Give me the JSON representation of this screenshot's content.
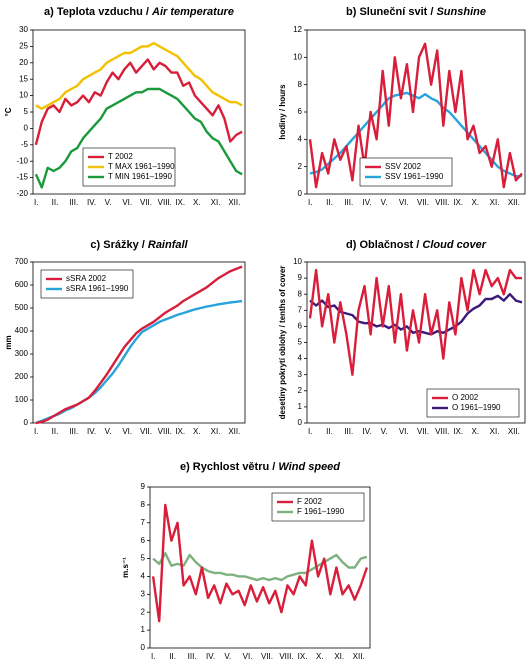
{
  "chart_data": [
    {
      "type": "line",
      "title": "a) Teplota vzduchu /",
      "title_en": "Air temperature",
      "ylabel": "°C",
      "legend": "lower-center",
      "categories": [
        "I.",
        null,
        null,
        "II.",
        null,
        null,
        "III.",
        null,
        null,
        "IV.",
        null,
        null,
        "V.",
        null,
        null,
        "VI.",
        null,
        null,
        "VII.",
        null,
        null,
        "VIII.",
        null,
        null,
        "IX.",
        null,
        null,
        "X.",
        null,
        null,
        "XI.",
        null,
        null,
        "XII.",
        null,
        null
      ],
      "ylim": [
        -20,
        30
      ],
      "yticks": [
        -20,
        -15,
        -10,
        -5,
        0,
        5,
        10,
        15,
        20,
        25,
        30
      ],
      "series": [
        {
          "name": "T 2002",
          "color": "#d81e3a",
          "values": [
            -5,
            2,
            6,
            7,
            5,
            9,
            7,
            8,
            10,
            8,
            11,
            10,
            14,
            17,
            15,
            18,
            20,
            17,
            19,
            21,
            18,
            20,
            19,
            17,
            17,
            13,
            14,
            10,
            8,
            6,
            4,
            7,
            3,
            -4,
            -2,
            -1
          ]
        },
        {
          "name": "T MAX 1961–1990",
          "color": "#f2c200",
          "values": [
            7,
            6,
            7,
            8,
            9,
            11,
            12,
            13,
            15,
            16,
            17,
            18,
            20,
            21,
            22,
            23,
            23,
            24,
            25,
            25,
            26,
            25,
            24,
            23,
            22,
            20,
            18,
            16,
            15,
            13,
            11,
            10,
            9,
            8,
            8,
            7
          ]
        },
        {
          "name": "T MIN 1961–1990",
          "color": "#1a9a3c",
          "values": [
            -14,
            -18,
            -12,
            -13,
            -12,
            -10,
            -7,
            -6,
            -3,
            -1,
            1,
            3,
            6,
            7,
            8,
            9,
            10,
            11,
            11,
            12,
            12,
            12,
            11,
            10,
            9,
            7,
            5,
            3,
            2,
            -1,
            -3,
            -4,
            -7,
            -10,
            -13,
            -14
          ]
        }
      ]
    },
    {
      "type": "line",
      "title": "b) Sluneční svit /",
      "title_en": "Sunshine",
      "ylabel": "hodiny / hours",
      "legend": "lower-center",
      "categories": [
        "I.",
        null,
        null,
        "II.",
        null,
        null,
        "III.",
        null,
        null,
        "IV.",
        null,
        null,
        "V.",
        null,
        null,
        "VI.",
        null,
        null,
        "VII.",
        null,
        null,
        "VIII.",
        null,
        null,
        "IX.",
        null,
        null,
        "X.",
        null,
        null,
        "XI.",
        null,
        null,
        "XII.",
        null,
        null
      ],
      "ylim": [
        0,
        12
      ],
      "yticks": [
        0,
        2,
        4,
        6,
        8,
        10,
        12
      ],
      "series": [
        {
          "name": "SSV 2002",
          "color": "#d81e3a",
          "values": [
            4,
            0.5,
            3,
            1.5,
            4,
            2.5,
            3.5,
            1,
            5,
            2,
            6,
            4,
            9,
            5,
            10,
            7,
            9.5,
            6,
            10,
            11,
            8,
            10.5,
            5,
            9,
            6,
            9,
            4,
            5,
            3,
            3.5,
            2,
            4,
            0.5,
            3,
            1,
            1.5
          ]
        },
        {
          "name": "SSV 1961–1990",
          "color": "#29a3dc",
          "values": [
            1.5,
            1.6,
            1.8,
            2.2,
            2.6,
            3,
            3.5,
            4,
            4.5,
            5,
            5.5,
            6,
            6.5,
            7,
            7.2,
            7.3,
            7.4,
            7.2,
            7,
            7.3,
            7,
            6.8,
            6.3,
            6,
            5.5,
            5,
            4.5,
            4,
            3.5,
            3,
            2.5,
            2,
            1.7,
            1.5,
            1.3,
            1.3
          ]
        }
      ]
    },
    {
      "type": "line",
      "title": "c) Srážky /",
      "title_en": "Rainfall",
      "ylabel": "mm",
      "legend": "upper-left",
      "categories": [
        "I.",
        null,
        null,
        "II.",
        null,
        null,
        "III.",
        null,
        null,
        "IV.",
        null,
        null,
        "V.",
        null,
        null,
        "VI.",
        null,
        null,
        "VII.",
        null,
        null,
        "VIII.",
        null,
        null,
        "IX.",
        null,
        null,
        "X.",
        null,
        null,
        "XI.",
        null,
        null,
        "XII.",
        null,
        null
      ],
      "ylim": [
        0,
        700
      ],
      "yticks": [
        0,
        100,
        200,
        300,
        400,
        500,
        600,
        700
      ],
      "series": [
        {
          "name": "sSRA 2002",
          "color": "#d81e3a",
          "values": [
            0,
            5,
            15,
            30,
            45,
            60,
            70,
            80,
            95,
            110,
            140,
            175,
            210,
            250,
            290,
            330,
            360,
            390,
            410,
            425,
            440,
            460,
            480,
            495,
            510,
            530,
            545,
            560,
            575,
            590,
            610,
            630,
            645,
            660,
            670,
            680
          ]
        },
        {
          "name": "sSRA 1961–1990",
          "color": "#29a3dc",
          "values": [
            0,
            10,
            20,
            30,
            40,
            55,
            65,
            80,
            95,
            110,
            130,
            155,
            185,
            215,
            250,
            290,
            330,
            365,
            395,
            410,
            425,
            440,
            450,
            460,
            470,
            478,
            486,
            494,
            500,
            506,
            511,
            516,
            520,
            524,
            527,
            530
          ]
        }
      ]
    },
    {
      "type": "line",
      "title": "d) Oblačnost /",
      "title_en": "Cloud cover",
      "ylabel": "desetiny pokrytí oblohy / tenths of cover",
      "legend": "lower-right",
      "categories": [
        "I.",
        null,
        null,
        "II.",
        null,
        null,
        "III.",
        null,
        null,
        "IV.",
        null,
        null,
        "V.",
        null,
        null,
        "VI.",
        null,
        null,
        "VII.",
        null,
        null,
        "VIII.",
        null,
        null,
        "IX.",
        null,
        null,
        "X.",
        null,
        null,
        "XI.",
        null,
        null,
        "XII.",
        null,
        null
      ],
      "ylim": [
        0,
        10
      ],
      "yticks": [
        0,
        1,
        2,
        3,
        4,
        5,
        6,
        7,
        8,
        9,
        10
      ],
      "series": [
        {
          "name": "O 2002",
          "color": "#d81e3a",
          "values": [
            6.5,
            9.5,
            6,
            8,
            5,
            7.5,
            5.5,
            3,
            7,
            8.5,
            5.5,
            9,
            6,
            8.5,
            5,
            8,
            4.5,
            7,
            5,
            8,
            5.5,
            7,
            4,
            7.5,
            5.5,
            9,
            7,
            9.5,
            8,
            9.5,
            8.5,
            9,
            8,
            9.5,
            9,
            9
          ]
        },
        {
          "name": "O 1961–1990",
          "color": "#3a1a7a",
          "values": [
            7.6,
            7.3,
            7.6,
            7.2,
            7.3,
            6.9,
            6.8,
            6.7,
            6.3,
            6.2,
            6.2,
            6,
            6.1,
            5.9,
            6.1,
            5.8,
            6,
            5.6,
            5.7,
            5.6,
            5.5,
            5.7,
            5.6,
            5.8,
            6,
            6.3,
            6.8,
            7.1,
            7.3,
            7.7,
            7.7,
            7.9,
            7.6,
            8,
            7.6,
            7.5
          ]
        }
      ]
    },
    {
      "type": "line",
      "title": "e) Rychlost větru /",
      "title_en": "Wind speed",
      "ylabel": "m.s⁻¹",
      "legend": "upper-right",
      "categories": [
        "I.",
        null,
        null,
        "II.",
        null,
        null,
        "III.",
        null,
        null,
        "IV.",
        null,
        null,
        "V.",
        null,
        null,
        "VI.",
        null,
        null,
        "VII.",
        null,
        null,
        "VIII.",
        null,
        null,
        "IX.",
        null,
        null,
        "X.",
        null,
        null,
        "XI.",
        null,
        null,
        "XII.",
        null,
        null
      ],
      "ylim": [
        0,
        9
      ],
      "yticks": [
        0,
        1,
        2,
        3,
        4,
        5,
        6,
        7,
        8,
        9
      ],
      "series": [
        {
          "name": "F 2002",
          "color": "#d81e3a",
          "values": [
            4,
            1.5,
            8,
            6,
            7,
            3.5,
            4,
            3,
            4.5,
            2.8,
            3.5,
            2.5,
            3.6,
            3,
            3.2,
            2.4,
            3.5,
            2.6,
            3.4,
            2.5,
            3.2,
            2,
            3.5,
            3,
            4,
            3.5,
            6,
            4,
            5,
            3,
            4.5,
            3,
            3.5,
            2.7,
            3.5,
            4.5
          ]
        },
        {
          "name": "F 1961–1990",
          "color": "#7fb07f",
          "values": [
            5,
            4.7,
            5.3,
            4.6,
            4.7,
            4.6,
            5.2,
            4.8,
            4.5,
            4.3,
            4.2,
            4.2,
            4.1,
            4.1,
            4,
            4,
            3.9,
            3.8,
            3.9,
            3.8,
            3.9,
            3.8,
            4,
            4.1,
            4.2,
            4.2,
            4.4,
            4.6,
            4.8,
            5,
            5.2,
            4.8,
            4.5,
            4.5,
            5,
            5.1
          ]
        }
      ]
    }
  ]
}
